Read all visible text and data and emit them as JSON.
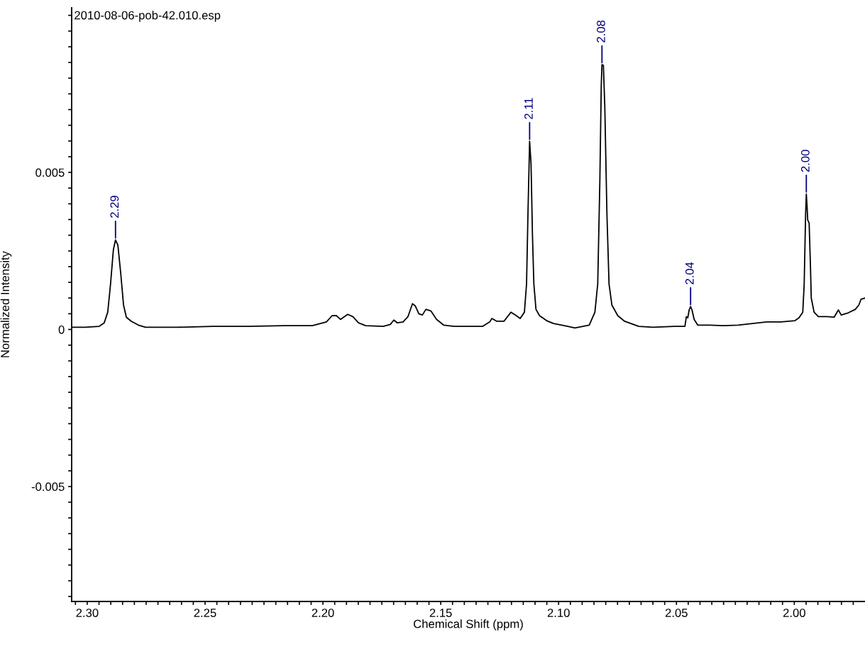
{
  "chart_data": {
    "type": "line",
    "title": "2010-08-06-pob-42.010.esp",
    "xlabel": "Chemical Shift (ppm)",
    "ylabel": "Normalized Intensity",
    "x": [
      2.3066,
      2.3009,
      2.2949,
      2.2928,
      2.2913,
      2.2901,
      2.2889,
      2.288,
      2.287,
      2.2858,
      2.2846,
      2.2834,
      2.2813,
      2.2783,
      2.2753,
      2.2617,
      2.2467,
      2.2316,
      2.2166,
      2.2045,
      2.1985,
      2.1961,
      2.1943,
      2.1925,
      2.1895,
      2.1873,
      2.1849,
      2.1819,
      2.1744,
      2.1714,
      2.1699,
      2.1684,
      2.166,
      2.1639,
      2.162,
      2.1608,
      2.1593,
      2.1578,
      2.1563,
      2.1542,
      2.1518,
      2.1488,
      2.1443,
      2.1322,
      2.1292,
      2.1283,
      2.1262,
      2.1232,
      2.1202,
      2.1184,
      2.1163,
      2.1145,
      2.1136,
      2.113,
      2.1123,
      2.1117,
      2.1111,
      2.1105,
      2.1096,
      2.1081,
      2.1051,
      2.1021,
      2.0961,
      2.0931,
      2.087,
      2.0846,
      2.0834,
      2.0825,
      2.0819,
      2.0816,
      2.081,
      2.0804,
      2.0795,
      2.0786,
      2.0774,
      2.0749,
      2.072,
      2.066,
      2.0599,
      2.0509,
      2.0464,
      2.0458,
      2.0452,
      2.0446,
      2.044,
      2.0434,
      2.0425,
      2.041,
      2.0358,
      2.0298,
      2.0238,
      2.0178,
      2.0117,
      2.0057,
      1.9997,
      1.998,
      1.9964,
      1.9958,
      1.9952,
      1.9949,
      1.9946,
      1.9943,
      1.9937,
      1.9931,
      1.9928,
      1.9916,
      1.9898,
      1.9861,
      1.9831,
      1.9813,
      1.9801,
      1.9771,
      1.9741,
      1.9726,
      1.9717,
      1.97
    ],
    "values": [
      7e-05,
      7e-05,
      0.0001,
      0.00021,
      0.00055,
      0.00145,
      0.00254,
      0.00285,
      0.00269,
      0.0018,
      0.00078,
      0.00039,
      0.00026,
      0.00014,
      7e-05,
      7e-05,
      0.0001,
      0.0001,
      0.00012,
      0.00012,
      0.00024,
      0.00044,
      0.00044,
      0.00032,
      0.00048,
      0.00041,
      0.00021,
      0.00012,
      0.0001,
      0.00016,
      0.0003,
      0.00021,
      0.00024,
      0.00041,
      0.00082,
      0.00075,
      0.0005,
      0.00046,
      0.00064,
      0.00059,
      0.00032,
      0.00014,
      0.0001,
      0.0001,
      0.00024,
      0.00035,
      0.00026,
      0.00026,
      0.00055,
      0.00046,
      0.00035,
      0.00055,
      0.00145,
      0.00368,
      0.00599,
      0.00529,
      0.00303,
      0.00145,
      0.00064,
      0.00044,
      0.00028,
      0.00019,
      0.0001,
      5e-05,
      0.00014,
      0.00055,
      0.00145,
      0.00472,
      0.00777,
      0.00843,
      0.00841,
      0.0071,
      0.00368,
      0.00145,
      0.00078,
      0.00044,
      0.00026,
      0.0001,
      7e-05,
      0.0001,
      0.0001,
      0.00041,
      0.00037,
      0.00062,
      0.00073,
      0.00062,
      0.00032,
      0.00014,
      0.00014,
      0.00012,
      0.00014,
      0.00019,
      0.00024,
      0.00024,
      0.00028,
      0.00037,
      0.00055,
      0.00145,
      0.00368,
      0.00431,
      0.00395,
      0.00348,
      0.00339,
      0.0019,
      0.001,
      0.00055,
      0.00041,
      0.00041,
      0.00039,
      0.00062,
      0.00046,
      0.00053,
      0.00064,
      0.00078,
      0.00096,
      0.001
    ],
    "color": "#000000",
    "marker": "none",
    "line_style": "solid",
    "grid": false,
    "legend": false,
    "xlim": [
      2.3066,
      1.97
    ],
    "ylim": [
      -0.00866,
      0.01024
    ],
    "xticks": [
      {
        "value": 2.305,
        "label": null
      },
      {
        "value": 2.3,
        "label": "2.30"
      },
      {
        "value": 2.295,
        "label": null
      },
      {
        "value": 2.29,
        "label": null
      },
      {
        "value": 2.285,
        "label": null
      },
      {
        "value": 2.28,
        "label": null
      },
      {
        "value": 2.275,
        "label": null
      },
      {
        "value": 2.27,
        "label": null
      },
      {
        "value": 2.265,
        "label": null
      },
      {
        "value": 2.26,
        "label": null
      },
      {
        "value": 2.255,
        "label": null
      },
      {
        "value": 2.25,
        "label": "2.25"
      },
      {
        "value": 2.245,
        "label": null
      },
      {
        "value": 2.24,
        "label": null
      },
      {
        "value": 2.235,
        "label": null
      },
      {
        "value": 2.23,
        "label": null
      },
      {
        "value": 2.225,
        "label": null
      },
      {
        "value": 2.22,
        "label": null
      },
      {
        "value": 2.215,
        "label": null
      },
      {
        "value": 2.21,
        "label": null
      },
      {
        "value": 2.205,
        "label": null
      },
      {
        "value": 2.2,
        "label": "2.20"
      },
      {
        "value": 2.195,
        "label": null
      },
      {
        "value": 2.19,
        "label": null
      },
      {
        "value": 2.185,
        "label": null
      },
      {
        "value": 2.18,
        "label": null
      },
      {
        "value": 2.175,
        "label": null
      },
      {
        "value": 2.17,
        "label": null
      },
      {
        "value": 2.165,
        "label": null
      },
      {
        "value": 2.16,
        "label": null
      },
      {
        "value": 2.155,
        "label": null
      },
      {
        "value": 2.15,
        "label": "2.15"
      },
      {
        "value": 2.145,
        "label": null
      },
      {
        "value": 2.14,
        "label": null
      },
      {
        "value": 2.135,
        "label": null
      },
      {
        "value": 2.13,
        "label": null
      },
      {
        "value": 2.125,
        "label": null
      },
      {
        "value": 2.12,
        "label": null
      },
      {
        "value": 2.115,
        "label": null
      },
      {
        "value": 2.11,
        "label": null
      },
      {
        "value": 2.105,
        "label": null
      },
      {
        "value": 2.1,
        "label": "2.10"
      },
      {
        "value": 2.095,
        "label": null
      },
      {
        "value": 2.09,
        "label": null
      },
      {
        "value": 2.085,
        "label": null
      },
      {
        "value": 2.08,
        "label": null
      },
      {
        "value": 2.075,
        "label": null
      },
      {
        "value": 2.07,
        "label": null
      },
      {
        "value": 2.065,
        "label": null
      },
      {
        "value": 2.06,
        "label": null
      },
      {
        "value": 2.055,
        "label": null
      },
      {
        "value": 2.05,
        "label": "2.05"
      },
      {
        "value": 2.045,
        "label": null
      },
      {
        "value": 2.04,
        "label": null
      },
      {
        "value": 2.035,
        "label": null
      },
      {
        "value": 2.03,
        "label": null
      },
      {
        "value": 2.025,
        "label": null
      },
      {
        "value": 2.02,
        "label": null
      },
      {
        "value": 2.015,
        "label": null
      },
      {
        "value": 2.01,
        "label": null
      },
      {
        "value": 2.005,
        "label": null
      },
      {
        "value": 2.0,
        "label": "2.00"
      },
      {
        "value": 1.995,
        "label": null
      },
      {
        "value": 1.99,
        "label": null
      },
      {
        "value": 1.985,
        "label": null
      },
      {
        "value": 1.98,
        "label": null
      },
      {
        "value": 1.975,
        "label": null
      }
    ],
    "yticks": [
      {
        "value": -0.0085,
        "label": null
      },
      {
        "value": -0.008,
        "label": null
      },
      {
        "value": -0.0075,
        "label": null
      },
      {
        "value": -0.007,
        "label": null
      },
      {
        "value": -0.0065,
        "label": null
      },
      {
        "value": -0.006,
        "label": null
      },
      {
        "value": -0.0055,
        "label": null
      },
      {
        "value": -0.005,
        "label": "-0.005"
      },
      {
        "value": -0.0045,
        "label": null
      },
      {
        "value": -0.004,
        "label": null
      },
      {
        "value": -0.0035,
        "label": null
      },
      {
        "value": -0.003,
        "label": null
      },
      {
        "value": -0.0025,
        "label": null
      },
      {
        "value": -0.002,
        "label": null
      },
      {
        "value": -0.0015,
        "label": null
      },
      {
        "value": -0.001,
        "label": null
      },
      {
        "value": -0.0005,
        "label": null
      },
      {
        "value": 0,
        "label": "0"
      },
      {
        "value": 0.0005,
        "label": null
      },
      {
        "value": 0.001,
        "label": null
      },
      {
        "value": 0.0015,
        "label": null
      },
      {
        "value": 0.002,
        "label": null
      },
      {
        "value": 0.0025,
        "label": null
      },
      {
        "value": 0.003,
        "label": null
      },
      {
        "value": 0.0035,
        "label": null
      },
      {
        "value": 0.004,
        "label": null
      },
      {
        "value": 0.0045,
        "label": null
      },
      {
        "value": 0.005,
        "label": "0.005"
      },
      {
        "value": 0.0055,
        "label": null
      },
      {
        "value": 0.006,
        "label": null
      },
      {
        "value": 0.0065,
        "label": null
      },
      {
        "value": 0.007,
        "label": null
      },
      {
        "value": 0.0075,
        "label": null
      },
      {
        "value": 0.008,
        "label": null
      },
      {
        "value": 0.0085,
        "label": null
      },
      {
        "value": 0.009,
        "label": null
      },
      {
        "value": 0.0095,
        "label": null
      },
      {
        "value": 0.01,
        "label": null
      }
    ],
    "annotations": [
      {
        "text": "2.29",
        "x": 2.288,
        "y": 0.00285
      },
      {
        "text": "2.11",
        "x": 2.1123,
        "y": 0.00599
      },
      {
        "text": "2.08",
        "x": 2.0816,
        "y": 0.00843
      },
      {
        "text": "2.04",
        "x": 2.044,
        "y": 0.00073
      },
      {
        "text": "2.00",
        "x": 1.9949,
        "y": 0.00431
      }
    ]
  }
}
